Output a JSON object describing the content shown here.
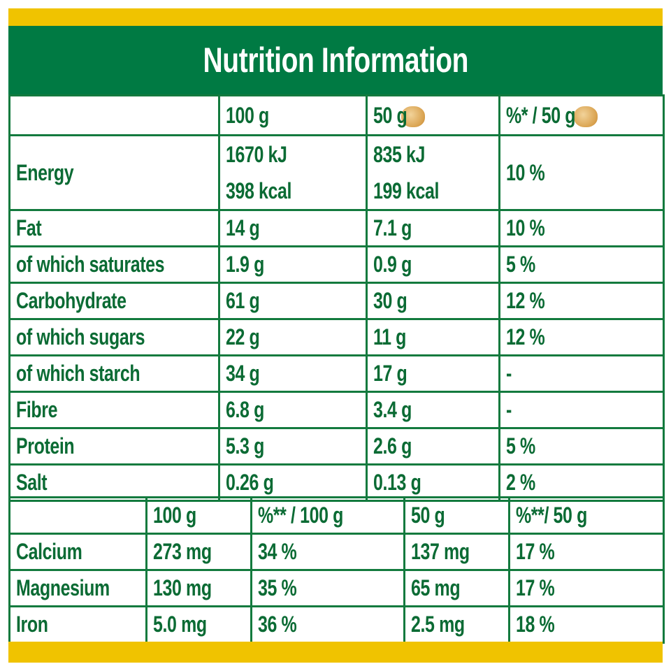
{
  "title": "Nutrition Information",
  "colors": {
    "green": "#007a43",
    "yellow": "#f0c300",
    "text": "#0b6b34"
  },
  "main_table": {
    "headers": [
      "",
      "100 g",
      "50 g",
      "%* / 50 g"
    ],
    "header_icon": "cereal-piece-icon",
    "energy": {
      "label": "Energy",
      "per100_kj": "1670 kJ",
      "per100_kcal": "398 kcal",
      "per50_kj": "835 kJ",
      "per50_kcal": "199 kcal",
      "pct": "10 %"
    },
    "rows": [
      {
        "label": "Fat",
        "per100": "14 g",
        "per50": "7.1 g",
        "pct": "10 %"
      },
      {
        "label": "of which saturates",
        "per100": "1.9 g",
        "per50": "0.9 g",
        "pct": "5 %"
      },
      {
        "label": "Carbohydrate",
        "per100": "61 g",
        "per50": "30 g",
        "pct": "12 %"
      },
      {
        "label": "of which sugars",
        "per100": "22 g",
        "per50": "11 g",
        "pct": "12 %"
      },
      {
        "label": "of which starch",
        "per100": "34 g",
        "per50": "17 g",
        "pct": "-"
      },
      {
        "label": "Fibre",
        "per100": "6.8 g",
        "per50": "3.4 g",
        "pct": "-"
      },
      {
        "label": "Protein",
        "per100": "5.3 g",
        "per50": "2.6 g",
        "pct": "5 %"
      },
      {
        "label": "Salt",
        "per100": "0.26 g",
        "per50": "0.13 g",
        "pct": "2 %"
      }
    ]
  },
  "minerals_table": {
    "headers": [
      "",
      "100 g",
      "%** / 100 g",
      "50 g",
      "%**/ 50 g"
    ],
    "rows": [
      {
        "label": "Calcium",
        "per100": "273 mg",
        "pct100": "34 %",
        "per50": "137 mg",
        "pct50": "17 %"
      },
      {
        "label": "Magnesium",
        "per100": "130 mg",
        "pct100": "35 %",
        "per50": "65 mg",
        "pct50": "17 %"
      },
      {
        "label": "Iron",
        "per100": "5.0 mg",
        "pct100": "36 %",
        "per50": "2.5 mg",
        "pct50": "18 %"
      }
    ]
  }
}
